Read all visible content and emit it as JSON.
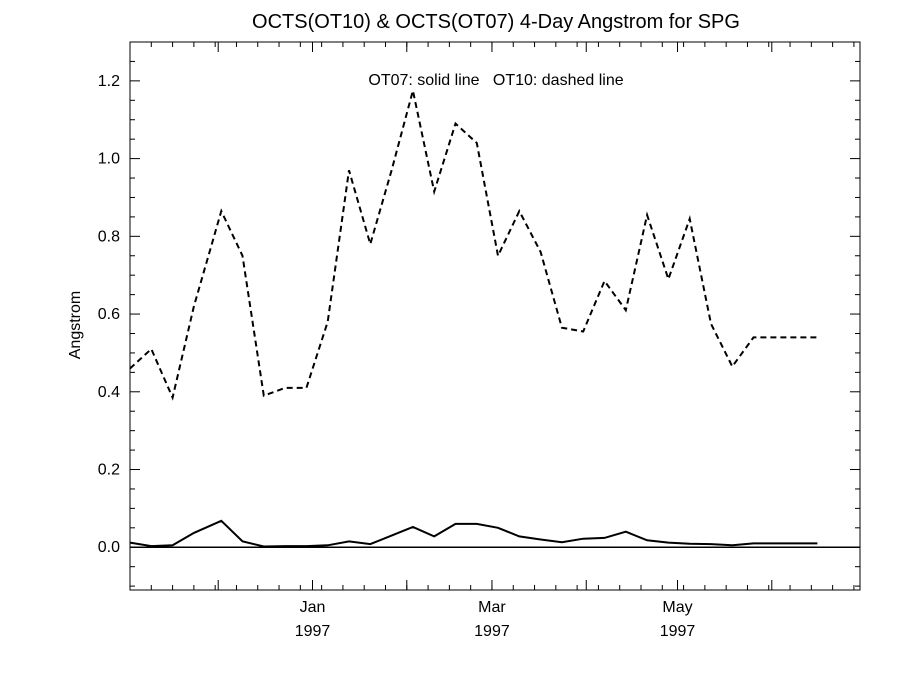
{
  "chart_data": {
    "type": "line",
    "title": "OCTS(OT10) & OCTS(OT07) 4-Day Angstrom for SPG",
    "ylabel": "Angstrom",
    "xlabel": "",
    "annotation": "OT07: solid line   OT10: dashed line",
    "ylim": [
      -0.11,
      1.3
    ],
    "y_ticks": [
      0.0,
      0.2,
      0.4,
      0.6,
      0.8,
      1.0,
      1.2
    ],
    "y_tick_labels": [
      "0.0",
      "0.2",
      "0.4",
      "0.6",
      "0.8",
      "1.0",
      "1.2"
    ],
    "x_axis": {
      "range": [
        "1996-11-02",
        "1997-06-30"
      ],
      "major_ticks": [
        "1996-12-01",
        "1997-01-01",
        "1997-02-01",
        "1997-03-01",
        "1997-04-01",
        "1997-05-01",
        "1997-06-01"
      ],
      "labels": [
        {
          "date": "1997-01-01",
          "month": "Jan",
          "year": "1997"
        },
        {
          "date": "1997-03-01",
          "month": "Mar",
          "year": "1997"
        },
        {
          "date": "1997-05-01",
          "month": "May",
          "year": "1997"
        }
      ]
    },
    "series": [
      {
        "name": "OT10",
        "style": "dashed",
        "x": [
          "1996-11-02",
          "1996-11-09",
          "1996-11-16",
          "1996-11-23",
          "1996-12-02",
          "1996-12-09",
          "1996-12-16",
          "1996-12-23",
          "1996-12-30",
          "1997-01-06",
          "1997-01-13",
          "1997-01-20",
          "1997-01-27",
          "1997-02-03",
          "1997-02-10",
          "1997-02-17",
          "1997-02-24",
          "1997-03-03",
          "1997-03-10",
          "1997-03-17",
          "1997-03-24",
          "1997-03-31",
          "1997-04-07",
          "1997-04-14",
          "1997-04-21",
          "1997-04-28",
          "1997-05-05",
          "1997-05-12",
          "1997-05-19",
          "1997-05-26",
          "1997-06-02",
          "1997-06-09",
          "1997-06-16"
        ],
        "values": [
          0.46,
          0.51,
          0.385,
          0.62,
          0.865,
          0.75,
          0.39,
          0.41,
          0.41,
          0.58,
          0.97,
          0.78,
          0.97,
          1.175,
          0.915,
          1.09,
          1.04,
          0.75,
          0.865,
          0.76,
          0.565,
          0.555,
          0.685,
          0.61,
          0.855,
          0.69,
          0.845,
          0.575,
          0.465,
          0.54,
          0.54,
          0.54,
          0.54
        ]
      },
      {
        "name": "OT07",
        "style": "solid",
        "x": [
          "1996-11-02",
          "1996-11-09",
          "1996-11-16",
          "1996-11-23",
          "1996-12-02",
          "1996-12-09",
          "1996-12-16",
          "1996-12-23",
          "1996-12-30",
          "1997-01-06",
          "1997-01-13",
          "1997-01-20",
          "1997-01-27",
          "1997-02-03",
          "1997-02-10",
          "1997-02-17",
          "1997-02-24",
          "1997-03-03",
          "1997-03-10",
          "1997-03-17",
          "1997-03-24",
          "1997-03-31",
          "1997-04-07",
          "1997-04-14",
          "1997-04-21",
          "1997-04-28",
          "1997-05-05",
          "1997-05-12",
          "1997-05-19",
          "1997-05-26",
          "1997-06-02",
          "1997-06-09",
          "1997-06-16"
        ],
        "values": [
          0.012,
          0.003,
          0.005,
          0.037,
          0.068,
          0.015,
          0.002,
          0.003,
          0.003,
          0.005,
          0.015,
          0.008,
          0.03,
          0.052,
          0.028,
          0.06,
          0.06,
          0.05,
          0.028,
          0.02,
          0.013,
          0.022,
          0.024,
          0.04,
          0.018,
          0.012,
          0.009,
          0.008,
          0.005,
          0.01,
          0.01,
          0.01,
          0.01
        ]
      }
    ],
    "zero_line": 0.0
  }
}
